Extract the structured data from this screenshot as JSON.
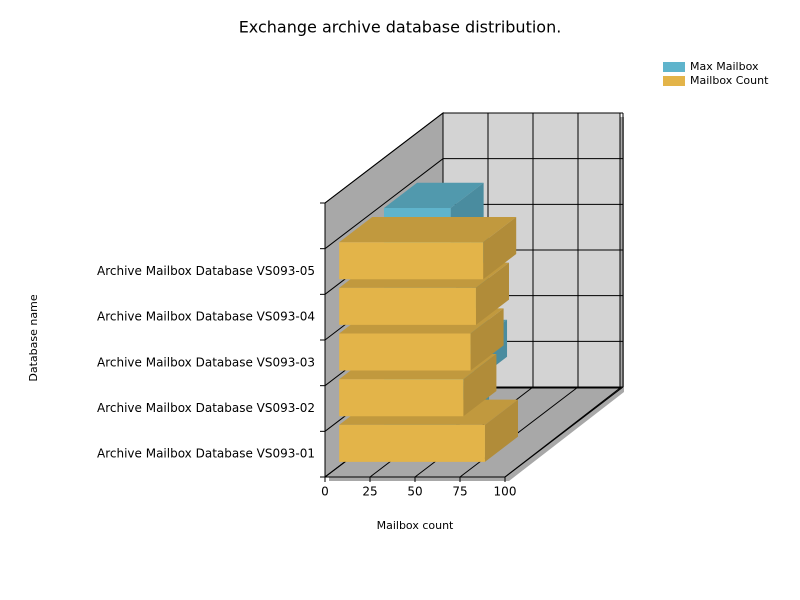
{
  "chart_data": {
    "type": "bar3d",
    "orientation": "horizontal",
    "title": "Exchange archive database distribution.",
    "xlabel": "Mailbox count",
    "ylabel": "Database name",
    "categories": [
      "Archive Mailbox Database VS093-01",
      "Archive Mailbox Database VS093-02",
      "Archive Mailbox Database VS093-03",
      "Archive Mailbox Database VS093-04",
      "Archive Mailbox Database VS093-05"
    ],
    "series": [
      {
        "name": "Max Mailbox",
        "color": "#5fb4cc",
        "values": [
          40,
          50,
          40,
          40,
          37
        ]
      },
      {
        "name": "Mailbox Count",
        "color": "#e3b449",
        "values": [
          81,
          69,
          73,
          76,
          80
        ]
      }
    ],
    "xlim": [
      0,
      100
    ],
    "xticks": [
      0,
      25,
      50,
      75,
      100
    ],
    "grid": true,
    "legend": "top-right"
  }
}
